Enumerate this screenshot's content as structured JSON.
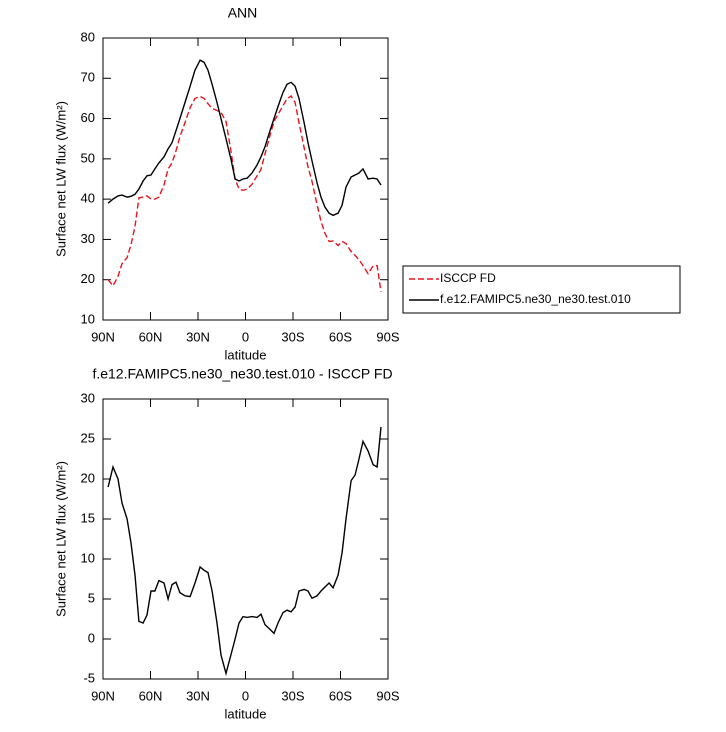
{
  "chart_data": [
    {
      "type": "line",
      "title": "ANN",
      "xlabel": "latitude",
      "ylabel": "Surface net LW flux (W/m²)",
      "xlim": [
        90,
        -90
      ],
      "ylim": [
        10,
        80
      ],
      "xticks": [
        {
          "value": 90,
          "label": "90N"
        },
        {
          "value": 60,
          "label": "60N"
        },
        {
          "value": 30,
          "label": "30N"
        },
        0,
        {
          "value": -30,
          "label": "30S"
        },
        {
          "value": -60,
          "label": "60S"
        },
        {
          "value": -90,
          "label": "90S"
        }
      ],
      "yticks": [
        10,
        20,
        30,
        40,
        50,
        60,
        70,
        80
      ],
      "legend": "right",
      "x": [
        86.8,
        83.7,
        80.5,
        78,
        74.8,
        72.3,
        69.8,
        67.3,
        64.7,
        62.2,
        59.7,
        57.2,
        54.7,
        51.5,
        48.9,
        46.4,
        43.9,
        41.4,
        38.2,
        35,
        31.9,
        28.7,
        26.2,
        23.7,
        21.1,
        18,
        15.5,
        12.3,
        9.2,
        6.6,
        4.1,
        1.6,
        -1,
        -4.1,
        -7.3,
        -9.8,
        -12.3,
        -15.5,
        -18,
        -20.5,
        -23.7,
        -26.2,
        -28.8,
        -31.3,
        -33.8,
        -37,
        -39.5,
        -42,
        -45.2,
        -47.7,
        -50.2,
        -52.8,
        -55.3,
        -58.5,
        -61,
        -63.5,
        -66.7,
        -69.2,
        -71.7,
        -74.2,
        -77.4,
        -80.6,
        -83.1,
        -85.6
      ],
      "series": [
        {
          "name": "ISCCP FD",
          "color": "#e8141c",
          "linestyle": "dashed",
          "values": [
            20,
            18.5,
            20.8,
            24,
            25.5,
            28.7,
            33.2,
            40.3,
            40.5,
            40.8,
            40,
            40,
            40.5,
            43.5,
            47.5,
            49,
            52,
            55.5,
            59,
            62.7,
            65,
            65.5,
            65,
            63.7,
            62.5,
            62,
            61.5,
            59.3,
            52,
            45,
            42.5,
            42.2,
            42.5,
            43.7,
            45.8,
            47.4,
            51.2,
            55.8,
            59.3,
            61,
            63.2,
            64.9,
            65.6,
            64,
            59,
            52.8,
            48,
            44.4,
            38.6,
            34.5,
            31.5,
            29.5,
            29.6,
            28.5,
            29.5,
            29,
            27,
            26,
            25,
            23.5,
            21.5,
            23.4,
            23.5,
            17
          ]
        },
        {
          "name": "f.e12.FAMIPC5.ne30_ne30.test.010",
          "color": "#000000",
          "linestyle": "solid",
          "values": [
            39,
            40,
            40.8,
            41,
            40.5,
            40.7,
            41.2,
            42.5,
            44.5,
            45.8,
            46,
            47.5,
            49,
            50.5,
            52.5,
            54,
            57,
            60,
            64,
            68,
            72,
            74.5,
            74,
            72,
            68.5,
            64,
            60,
            55,
            50,
            45,
            44.5,
            45,
            45.2,
            46.5,
            48.5,
            50.5,
            53,
            57,
            60,
            63,
            66.5,
            68.5,
            69,
            68,
            65,
            59,
            54,
            49.5,
            44,
            40.5,
            38,
            36.5,
            36,
            36.5,
            38.5,
            43,
            45.5,
            46,
            46.5,
            47.5,
            45,
            45.2,
            45,
            43.5
          ]
        }
      ]
    },
    {
      "type": "line",
      "title": "f.e12.FAMIPC5.ne30_ne30.test.010 - ISCCP FD",
      "xlabel": "latitude",
      "ylabel": "Surface net LW flux (W/m²)",
      "xlim": [
        90,
        -90
      ],
      "ylim": [
        -5,
        30
      ],
      "xticks": [
        {
          "value": 90,
          "label": "90N"
        },
        {
          "value": 60,
          "label": "60N"
        },
        {
          "value": 30,
          "label": "30N"
        },
        0,
        {
          "value": -30,
          "label": "30S"
        },
        {
          "value": -60,
          "label": "60S"
        },
        {
          "value": -90,
          "label": "90S"
        }
      ],
      "yticks": [
        -5,
        0,
        5,
        10,
        15,
        20,
        25,
        30
      ],
      "x": [
        86.8,
        83.7,
        80.5,
        78,
        74.8,
        72.3,
        69.8,
        67.3,
        64.7,
        62.2,
        59.7,
        57.2,
        54.7,
        51.5,
        48.9,
        46.4,
        43.9,
        41.4,
        38.2,
        35,
        31.9,
        28.7,
        26.2,
        23.7,
        21.1,
        18,
        15.5,
        12.3,
        9.2,
        6.6,
        4.1,
        1.6,
        -1,
        -4.1,
        -7.3,
        -9.8,
        -12.3,
        -15.5,
        -18,
        -20.5,
        -23.7,
        -26.2,
        -28.8,
        -31.3,
        -33.8,
        -37,
        -39.5,
        -42,
        -45.2,
        -47.7,
        -50.2,
        -52.8,
        -55.3,
        -58.5,
        -61,
        -63.5,
        -66.7,
        -69.2,
        -71.7,
        -74.2,
        -77.4,
        -80.6,
        -83.1,
        -85.6
      ],
      "series": [
        {
          "color": "#000000",
          "linestyle": "solid",
          "values": [
            19,
            21.5,
            20,
            17,
            15,
            12,
            8,
            2.2,
            2,
            3,
            6,
            6,
            7.3,
            7,
            5,
            6.8,
            7.1,
            5.8,
            5.4,
            5.3,
            7,
            9,
            8.6,
            8.3,
            6,
            2,
            -2,
            -4.3,
            -2,
            0,
            2,
            2.8,
            2.7,
            2.8,
            2.7,
            3.1,
            1.8,
            1.2,
            0.7,
            2,
            3.3,
            3.6,
            3.4,
            4,
            6,
            6.2,
            6,
            5.1,
            5.4,
            6,
            6.5,
            7,
            6.4,
            8,
            10.8,
            15,
            19.8,
            20.5,
            22.5,
            24.7,
            23.5,
            21.8,
            21.5,
            26.5
          ]
        }
      ]
    }
  ]
}
